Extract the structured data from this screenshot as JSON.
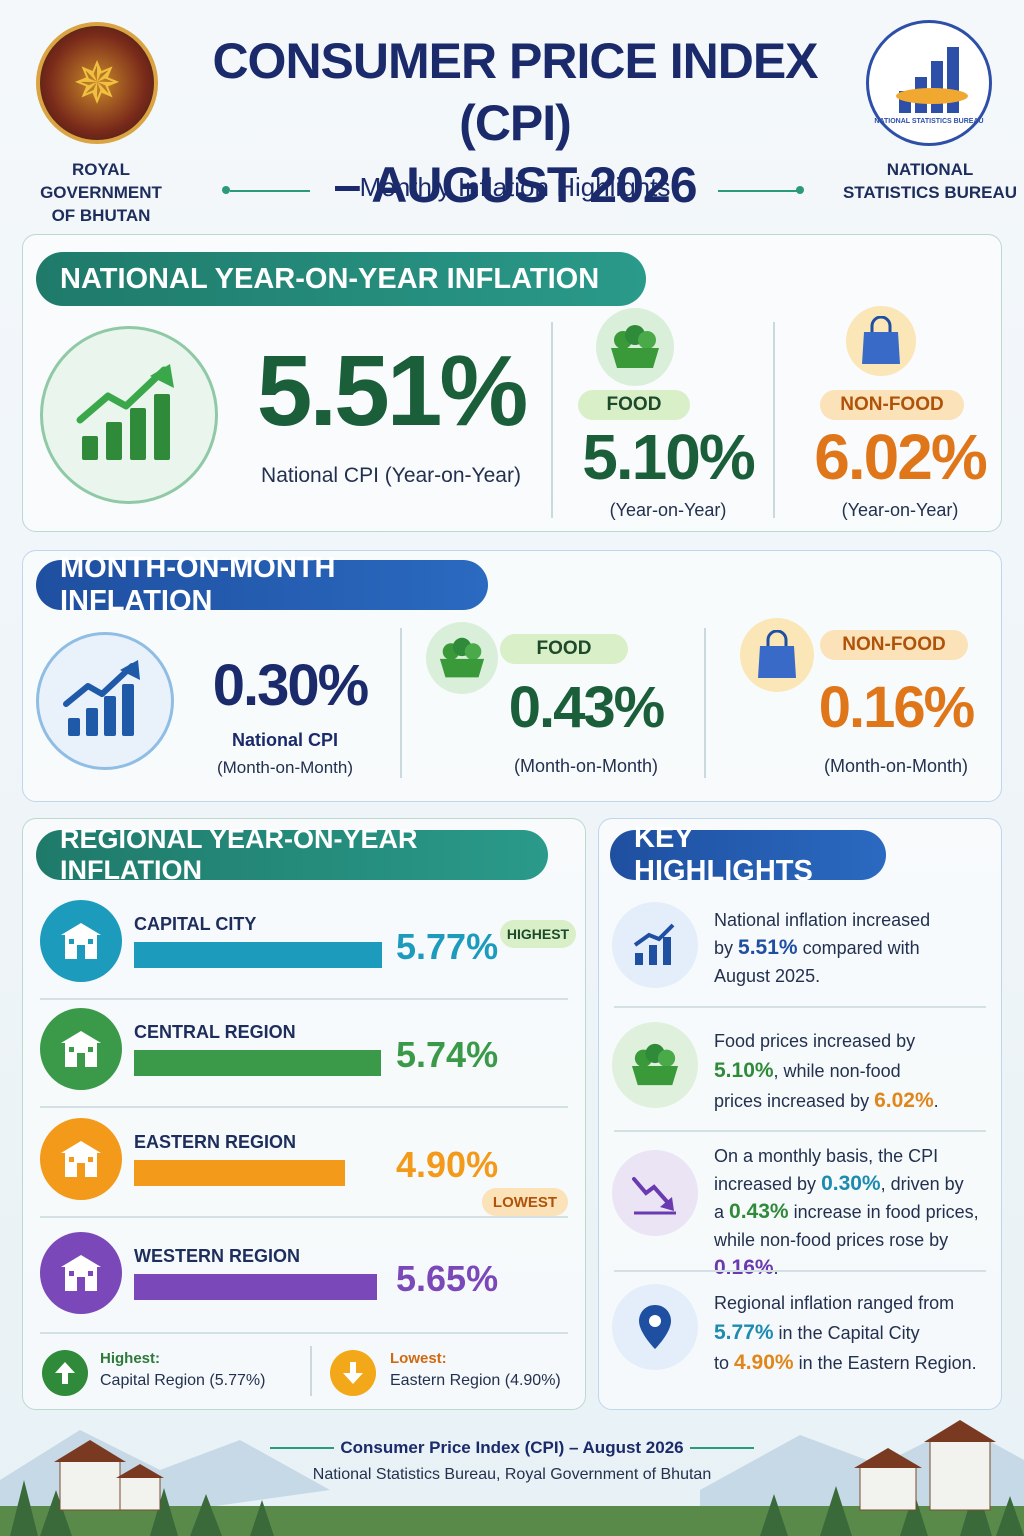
{
  "header": {
    "title_line1": "CONSUMER PRICE INDEX (CPI)",
    "title_line2": "– AUGUST 2026",
    "subtitle": "Monthly Inflation Highlights",
    "left_org_line1": "ROYAL GOVERNMENT",
    "left_org_line2": "OF BHUTAN",
    "right_org_line1": "NATIONAL",
    "right_org_line2": "STATISTICS BUREAU",
    "right_logo_ring_text": "NATIONAL STATISTICS BUREAU"
  },
  "yoy": {
    "heading": "NATIONAL YEAR-ON-YEAR INFLATION",
    "national_value": "5.51%",
    "national_label": "National CPI (Year-on-Year)",
    "food_tag": "FOOD",
    "food_value": "5.10%",
    "food_label": "(Year-on-Year)",
    "nonfood_tag": "NON-FOOD",
    "nonfood_value": "6.02%",
    "nonfood_label": "(Year-on-Year)"
  },
  "mom": {
    "heading": "MONTH-ON-MONTH INFLATION",
    "national_value": "0.30%",
    "national_label1": "National CPI",
    "national_label2": "(Month-on-Month)",
    "food_tag": "FOOD",
    "food_value": "0.43%",
    "food_label": "(Month-on-Month)",
    "nonfood_tag": "NON-FOOD",
    "nonfood_value": "0.16%",
    "nonfood_label": "(Month-on-Month)"
  },
  "regional": {
    "heading": "REGIONAL YEAR-ON-YEAR INFLATION",
    "rows": [
      {
        "name": "CAPITAL CITY",
        "value": "5.77%",
        "pct": 5.77,
        "color": "#1d9bbd"
      },
      {
        "name": "CENTRAL REGION",
        "value": "5.74%",
        "pct": 5.74,
        "color": "#3a9a4a"
      },
      {
        "name": "EASTERN REGION",
        "value": "4.90%",
        "pct": 4.9,
        "color": "#f39a1a"
      },
      {
        "name": "WESTERN REGION",
        "value": "5.65%",
        "pct": 5.65,
        "color": "#7a48b8"
      }
    ],
    "highest_tag": "HIGHEST",
    "lowest_tag": "LOWEST",
    "highest_label": "Highest:",
    "highest_detail": "Capital Region (5.77%)",
    "lowest_label": "Lowest:",
    "lowest_detail": "Eastern Region (4.90%)"
  },
  "highlights": {
    "heading": "KEY  HIGHLIGHTS",
    "h1_a": "National inflation increased",
    "h1_b": "by ",
    "h1_val": "5.51%",
    "h1_c": " compared with",
    "h1_d": "August 2025.",
    "h2_a": "Food prices increased by",
    "h2_val1": "5.10%",
    "h2_b": ", while non-food",
    "h2_c": "prices increased by ",
    "h2_val2": "6.02%",
    "h2_d": ".",
    "h3_a": "On a monthly basis, the CPI",
    "h3_b": "increased by ",
    "h3_val1": "0.30%",
    "h3_c": ", driven by",
    "h3_d": "a ",
    "h3_val2": "0.43%",
    "h3_e": " increase in food prices,",
    "h3_f": "while non-food prices rose by ",
    "h3_val3": "0.16%",
    "h3_g": ".",
    "h4_a": "Regional inflation ranged from",
    "h4_val1": "5.77%",
    "h4_b": " in the Capital City",
    "h4_c": "to ",
    "h4_val2": "4.90%",
    "h4_d": " in the Eastern Region."
  },
  "footer": {
    "title": "Consumer Price Index (CPI) – August 2026",
    "subtitle": "National Statistics Bureau, Royal Government of Bhutan"
  },
  "colors": {
    "dark_green": "#1a5e3a",
    "orange": "#e0761a",
    "navy": "#1b2a6b",
    "teal": "#1f7a6a",
    "blue": "#1f4fa0"
  }
}
